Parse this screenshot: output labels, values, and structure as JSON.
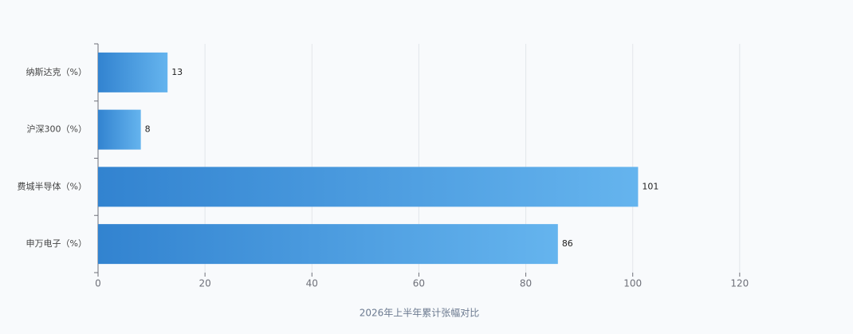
{
  "chart_data": {
    "type": "bar",
    "orientation": "horizontal",
    "x_label": "2026年上半年累计张幅对比",
    "categories": [
      "纳斯达克（%）",
      "沪深300（%）",
      "费城半导体（%）",
      "申万电子（%）"
    ],
    "values": [
      13,
      8,
      101,
      86
    ],
    "color": [
      "#3283d0",
      "#65b4ee"
    ],
    "xlim": [
      0,
      140
    ],
    "xticks": [
      0,
      20,
      40,
      60,
      80,
      100,
      120
    ],
    "grid": true
  }
}
